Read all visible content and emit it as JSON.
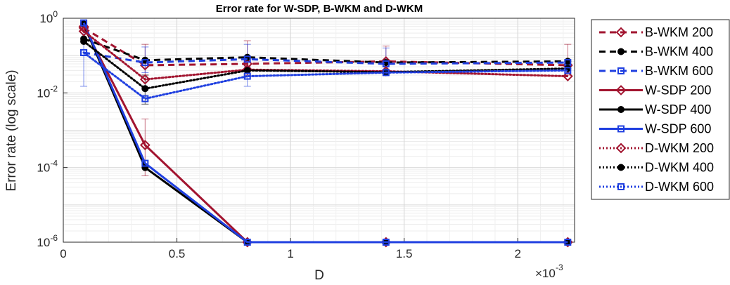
{
  "chart_data": {
    "type": "line",
    "title": "Error rate for W-SDP, B-WKM and D-WKM",
    "xlabel": "D",
    "ylabel": "Error rate (log scale)",
    "x_multiplier_label": "×10",
    "x_multiplier_exp": "-3",
    "xlim": [
      0,
      2.25
    ],
    "ylim": [
      1e-06,
      1
    ],
    "yscale": "log",
    "grid": true,
    "legend_position": "outside-right",
    "x_ticks": [
      {
        "value": 0,
        "label": "0"
      },
      {
        "value": 0.5,
        "label": "0.5"
      },
      {
        "value": 1,
        "label": "1"
      },
      {
        "value": 1.5,
        "label": "1.5"
      },
      {
        "value": 2,
        "label": "2"
      }
    ],
    "y_ticks": [
      {
        "value": 1,
        "base": "10",
        "exp": "0"
      },
      {
        "value": 0.01,
        "base": "10",
        "exp": "-2"
      },
      {
        "value": 0.0001,
        "base": "10",
        "exp": "-4"
      },
      {
        "value": 1e-06,
        "base": "10",
        "exp": "-6"
      }
    ],
    "x": [
      0.09,
      0.36,
      0.81,
      1.42,
      2.22
    ],
    "series": [
      {
        "name": "B-WKM 200",
        "color": "#a2142f",
        "dash": "dashed",
        "marker": "diamond",
        "values": [
          0.55,
          0.055,
          0.06,
          0.07,
          0.055
        ]
      },
      {
        "name": "B-WKM 400",
        "color": "#000000",
        "dash": "dashed",
        "marker": "circle",
        "values": [
          0.28,
          0.075,
          0.09,
          0.065,
          0.07
        ]
      },
      {
        "name": "B-WKM 600",
        "color": "#1f3fe0",
        "dash": "dashed",
        "marker": "square",
        "values": [
          0.12,
          0.065,
          0.08,
          0.06,
          0.065
        ]
      },
      {
        "name": "W-SDP 200",
        "color": "#a2142f",
        "dash": "solid",
        "marker": "diamond",
        "values": [
          0.6,
          0.0004,
          1e-06,
          1e-06,
          1e-06
        ]
      },
      {
        "name": "W-SDP 400",
        "color": "#000000",
        "dash": "solid",
        "marker": "circle",
        "values": [
          0.7,
          0.0001,
          1e-06,
          1e-06,
          1e-06
        ]
      },
      {
        "name": "W-SDP 600",
        "color": "#1f3fe0",
        "dash": "solid",
        "marker": "square",
        "values": [
          0.75,
          0.00013,
          1e-06,
          1e-06,
          1e-06
        ]
      },
      {
        "name": "D-WKM 200",
        "color": "#a2142f",
        "dash": "dotted",
        "marker": "diamond",
        "values": [
          0.45,
          0.023,
          0.042,
          0.038,
          0.028
        ]
      },
      {
        "name": "D-WKM 400",
        "color": "#000000",
        "dash": "dotted",
        "marker": "circle",
        "values": [
          0.24,
          0.013,
          0.04,
          0.036,
          0.045
        ]
      },
      {
        "name": "D-WKM 600",
        "color": "#1f3fe0",
        "dash": "dotted",
        "marker": "square",
        "values": [
          0.12,
          0.007,
          0.028,
          0.035,
          0.04
        ]
      }
    ],
    "error_bars": [
      {
        "series": "B-WKM 200",
        "x": 0.36,
        "low": 0.03,
        "high": 0.2
      },
      {
        "series": "B-WKM 200",
        "x": 0.81,
        "low": 0.03,
        "high": 0.25
      },
      {
        "series": "B-WKM 200",
        "x": 1.42,
        "low": 0.04,
        "high": 0.18
      },
      {
        "series": "B-WKM 200",
        "x": 2.22,
        "low": 0.03,
        "high": 0.2
      },
      {
        "series": "B-WKM 600",
        "x": 0.09,
        "low": 0.015,
        "high": 0.5
      },
      {
        "series": "B-WKM 600",
        "x": 0.36,
        "low": 0.035,
        "high": 0.17
      },
      {
        "series": "B-WKM 600",
        "x": 0.81,
        "low": 0.04,
        "high": 0.2
      },
      {
        "series": "B-WKM 600",
        "x": 1.42,
        "low": 0.035,
        "high": 0.16
      },
      {
        "series": "W-SDP 200",
        "x": 0.36,
        "low": 6e-05,
        "high": 0.002
      },
      {
        "series": "D-WKM 400",
        "x": 0.36,
        "low": 0.005,
        "high": 0.03
      },
      {
        "series": "D-WKM 600",
        "x": 0.81,
        "low": 0.015,
        "high": 0.05
      }
    ]
  }
}
